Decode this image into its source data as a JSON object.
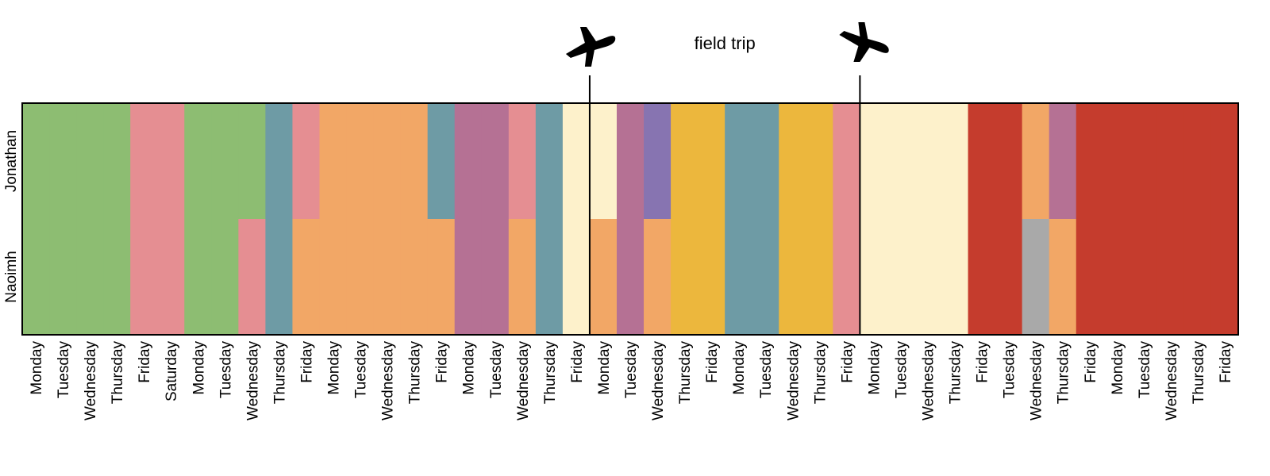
{
  "chart_data": {
    "type": "heatmap",
    "rows": [
      "Jonathan",
      "Naoimh"
    ],
    "days": [
      "Monday",
      "Tuesday",
      "Wednesday",
      "Thursday",
      "Friday",
      "Saturday",
      "Monday",
      "Tuesday",
      "Wednesday",
      "Thursday",
      "Friday",
      "Monday",
      "Tuesday",
      "Wednesday",
      "Thursday",
      "Friday",
      "Monday",
      "Tuesday",
      "Wednesday",
      "Thursday",
      "Friday",
      "Monday",
      "Tuesday",
      "Wednesday",
      "Thursday",
      "Friday",
      "Monday",
      "Tuesday",
      "Wednesday",
      "Thursday",
      "Friday",
      "Monday",
      "Tuesday",
      "Wednesday",
      "Thursday",
      "Friday",
      "Tuesday",
      "Wednesday",
      "Thursday",
      "Friday",
      "Monday",
      "Tuesday",
      "Wednesday",
      "Thursday",
      "Friday"
    ],
    "palette": {
      "green": "#8dbd72",
      "pink": "#e58e92",
      "teal": "#6e9ba5",
      "orange": "#f2a766",
      "purple": "#b57194",
      "cream": "#fdf1cb",
      "violet": "#8774b1",
      "yellow": "#ecb73d",
      "red": "#c53c2d",
      "gray": "#a9a9a9"
    },
    "cells": {
      "Jonathan": [
        "green",
        "green",
        "green",
        "green",
        "pink",
        "pink",
        "green",
        "green",
        "green",
        "teal",
        "pink",
        "orange",
        "orange",
        "orange",
        "orange",
        "teal",
        "purple",
        "purple",
        "pink",
        "teal",
        "cream",
        "cream",
        "purple",
        "violet",
        "yellow",
        "yellow",
        "teal",
        "teal",
        "yellow",
        "yellow",
        "pink",
        "cream",
        "cream",
        "cream",
        "cream",
        "red",
        "red",
        "orange",
        "purple",
        "red",
        "red",
        "red",
        "red",
        "red",
        "red"
      ],
      "Naoimh": [
        "green",
        "green",
        "green",
        "green",
        "pink",
        "pink",
        "green",
        "green",
        "pink",
        "teal",
        "orange",
        "orange",
        "orange",
        "orange",
        "orange",
        "orange",
        "purple",
        "purple",
        "orange",
        "teal",
        "cream",
        "orange",
        "purple",
        "orange",
        "yellow",
        "yellow",
        "teal",
        "teal",
        "yellow",
        "yellow",
        "pink",
        "cream",
        "cream",
        "cream",
        "cream",
        "red",
        "red",
        "gray",
        "orange",
        "red",
        "red",
        "red",
        "red",
        "red",
        "red"
      ]
    },
    "annotations": {
      "field_trip_label": "field trip",
      "field_trip_start_after_day": 21,
      "field_trip_end_after_day": 31,
      "markers": [
        "airplane-icon",
        "airplane-icon"
      ]
    }
  }
}
